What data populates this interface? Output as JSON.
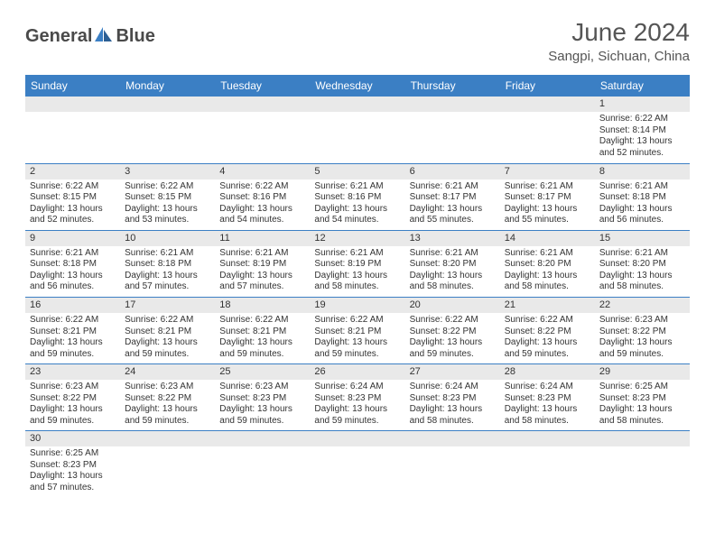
{
  "brand": {
    "part1": "General",
    "part2": "Blue"
  },
  "title": "June 2024",
  "location": "Sangpi, Sichuan, China",
  "colors": {
    "header_bg": "#3b7fc4",
    "header_text": "#ffffff",
    "daynum_bg": "#e9e9e9",
    "border": "#3b7fc4",
    "text": "#333333",
    "title_text": "#555555"
  },
  "dayNames": [
    "Sunday",
    "Monday",
    "Tuesday",
    "Wednesday",
    "Thursday",
    "Friday",
    "Saturday"
  ],
  "weeks": [
    [
      null,
      null,
      null,
      null,
      null,
      null,
      {
        "n": "1",
        "sr": "Sunrise: 6:22 AM",
        "ss": "Sunset: 8:14 PM",
        "dl": "Daylight: 13 hours and 52 minutes."
      }
    ],
    [
      {
        "n": "2",
        "sr": "Sunrise: 6:22 AM",
        "ss": "Sunset: 8:15 PM",
        "dl": "Daylight: 13 hours and 52 minutes."
      },
      {
        "n": "3",
        "sr": "Sunrise: 6:22 AM",
        "ss": "Sunset: 8:15 PM",
        "dl": "Daylight: 13 hours and 53 minutes."
      },
      {
        "n": "4",
        "sr": "Sunrise: 6:22 AM",
        "ss": "Sunset: 8:16 PM",
        "dl": "Daylight: 13 hours and 54 minutes."
      },
      {
        "n": "5",
        "sr": "Sunrise: 6:21 AM",
        "ss": "Sunset: 8:16 PM",
        "dl": "Daylight: 13 hours and 54 minutes."
      },
      {
        "n": "6",
        "sr": "Sunrise: 6:21 AM",
        "ss": "Sunset: 8:17 PM",
        "dl": "Daylight: 13 hours and 55 minutes."
      },
      {
        "n": "7",
        "sr": "Sunrise: 6:21 AM",
        "ss": "Sunset: 8:17 PM",
        "dl": "Daylight: 13 hours and 55 minutes."
      },
      {
        "n": "8",
        "sr": "Sunrise: 6:21 AM",
        "ss": "Sunset: 8:18 PM",
        "dl": "Daylight: 13 hours and 56 minutes."
      }
    ],
    [
      {
        "n": "9",
        "sr": "Sunrise: 6:21 AM",
        "ss": "Sunset: 8:18 PM",
        "dl": "Daylight: 13 hours and 56 minutes."
      },
      {
        "n": "10",
        "sr": "Sunrise: 6:21 AM",
        "ss": "Sunset: 8:18 PM",
        "dl": "Daylight: 13 hours and 57 minutes."
      },
      {
        "n": "11",
        "sr": "Sunrise: 6:21 AM",
        "ss": "Sunset: 8:19 PM",
        "dl": "Daylight: 13 hours and 57 minutes."
      },
      {
        "n": "12",
        "sr": "Sunrise: 6:21 AM",
        "ss": "Sunset: 8:19 PM",
        "dl": "Daylight: 13 hours and 58 minutes."
      },
      {
        "n": "13",
        "sr": "Sunrise: 6:21 AM",
        "ss": "Sunset: 8:20 PM",
        "dl": "Daylight: 13 hours and 58 minutes."
      },
      {
        "n": "14",
        "sr": "Sunrise: 6:21 AM",
        "ss": "Sunset: 8:20 PM",
        "dl": "Daylight: 13 hours and 58 minutes."
      },
      {
        "n": "15",
        "sr": "Sunrise: 6:21 AM",
        "ss": "Sunset: 8:20 PM",
        "dl": "Daylight: 13 hours and 58 minutes."
      }
    ],
    [
      {
        "n": "16",
        "sr": "Sunrise: 6:22 AM",
        "ss": "Sunset: 8:21 PM",
        "dl": "Daylight: 13 hours and 59 minutes."
      },
      {
        "n": "17",
        "sr": "Sunrise: 6:22 AM",
        "ss": "Sunset: 8:21 PM",
        "dl": "Daylight: 13 hours and 59 minutes."
      },
      {
        "n": "18",
        "sr": "Sunrise: 6:22 AM",
        "ss": "Sunset: 8:21 PM",
        "dl": "Daylight: 13 hours and 59 minutes."
      },
      {
        "n": "19",
        "sr": "Sunrise: 6:22 AM",
        "ss": "Sunset: 8:21 PM",
        "dl": "Daylight: 13 hours and 59 minutes."
      },
      {
        "n": "20",
        "sr": "Sunrise: 6:22 AM",
        "ss": "Sunset: 8:22 PM",
        "dl": "Daylight: 13 hours and 59 minutes."
      },
      {
        "n": "21",
        "sr": "Sunrise: 6:22 AM",
        "ss": "Sunset: 8:22 PM",
        "dl": "Daylight: 13 hours and 59 minutes."
      },
      {
        "n": "22",
        "sr": "Sunrise: 6:23 AM",
        "ss": "Sunset: 8:22 PM",
        "dl": "Daylight: 13 hours and 59 minutes."
      }
    ],
    [
      {
        "n": "23",
        "sr": "Sunrise: 6:23 AM",
        "ss": "Sunset: 8:22 PM",
        "dl": "Daylight: 13 hours and 59 minutes."
      },
      {
        "n": "24",
        "sr": "Sunrise: 6:23 AM",
        "ss": "Sunset: 8:22 PM",
        "dl": "Daylight: 13 hours and 59 minutes."
      },
      {
        "n": "25",
        "sr": "Sunrise: 6:23 AM",
        "ss": "Sunset: 8:23 PM",
        "dl": "Daylight: 13 hours and 59 minutes."
      },
      {
        "n": "26",
        "sr": "Sunrise: 6:24 AM",
        "ss": "Sunset: 8:23 PM",
        "dl": "Daylight: 13 hours and 59 minutes."
      },
      {
        "n": "27",
        "sr": "Sunrise: 6:24 AM",
        "ss": "Sunset: 8:23 PM",
        "dl": "Daylight: 13 hours and 58 minutes."
      },
      {
        "n": "28",
        "sr": "Sunrise: 6:24 AM",
        "ss": "Sunset: 8:23 PM",
        "dl": "Daylight: 13 hours and 58 minutes."
      },
      {
        "n": "29",
        "sr": "Sunrise: 6:25 AM",
        "ss": "Sunset: 8:23 PM",
        "dl": "Daylight: 13 hours and 58 minutes."
      }
    ],
    [
      {
        "n": "30",
        "sr": "Sunrise: 6:25 AM",
        "ss": "Sunset: 8:23 PM",
        "dl": "Daylight: 13 hours and 57 minutes."
      },
      null,
      null,
      null,
      null,
      null,
      null
    ]
  ]
}
